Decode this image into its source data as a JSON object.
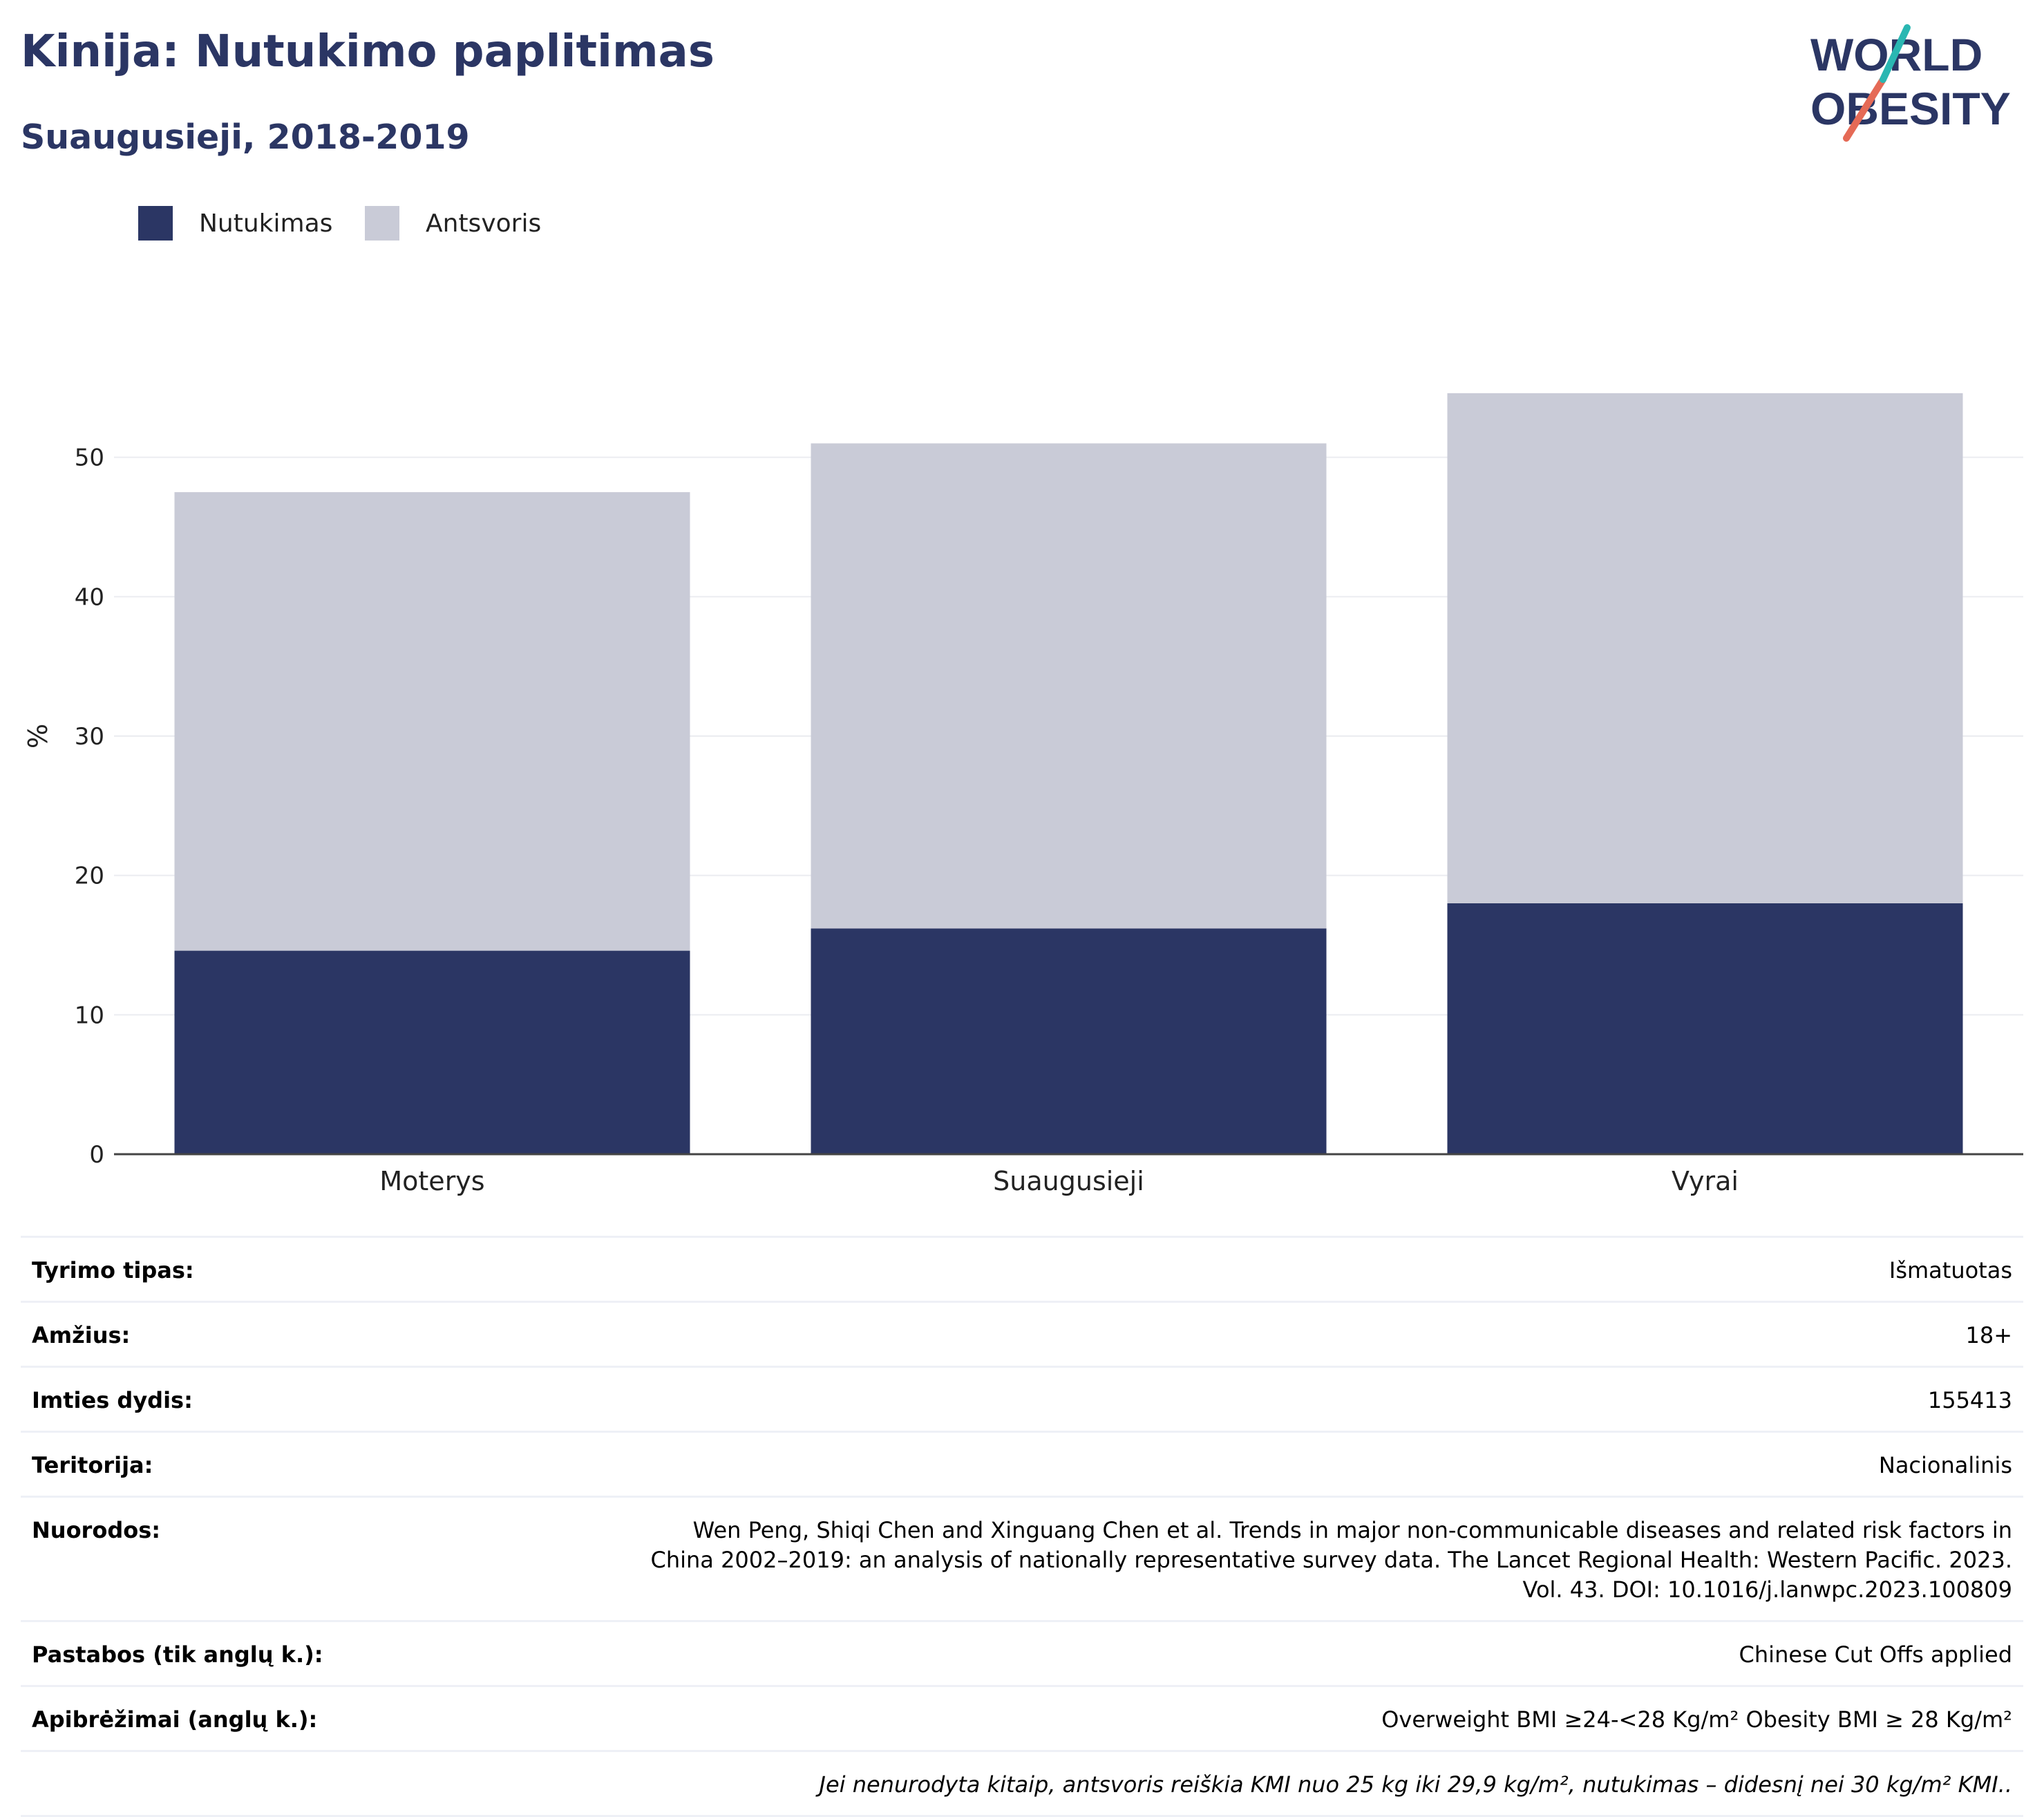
{
  "header": {
    "title": "Kinija: Nutukimo paplitimas",
    "subtitle": "Suaugusieji, 2018-2019"
  },
  "logo": {
    "line1": "WORLD",
    "line2": "OBESITY",
    "accent_colors": [
      "#2ab7b2",
      "#e56a56"
    ]
  },
  "colors": {
    "obesity": "#2b3664",
    "overweight": "#c9cbd7",
    "text_dark": "#2b3664"
  },
  "chart_data": {
    "type": "bar",
    "stacked": true,
    "categories": [
      "Moterys",
      "Suaugusieji",
      "Vyrai"
    ],
    "series": [
      {
        "name": "Nutukimas",
        "values": [
          14.6,
          16.2,
          18.0
        ],
        "color": "#2b3664"
      },
      {
        "name": "Antsvoris",
        "values": [
          32.9,
          34.8,
          36.6
        ],
        "color": "#c9cbd7"
      }
    ],
    "ylabel": "%",
    "xlabel": "",
    "ylim": [
      0,
      60
    ],
    "yticks": [
      0,
      10,
      20,
      30,
      40,
      50
    ],
    "grid": true,
    "legend_position": "top-left"
  },
  "info": {
    "rows": [
      {
        "label": "Tyrimo tipas:",
        "value": "Išmatuotas"
      },
      {
        "label": "Amžius:",
        "value": "18+"
      },
      {
        "label": "Imties dydis:",
        "value": "155413"
      },
      {
        "label": "Teritorija:",
        "value": "Nacionalinis"
      },
      {
        "label": "Nuorodos:",
        "value": "Wen Peng, Shiqi Chen and Xinguang Chen et al. Trends in major non-communicable diseases and related risk factors in China 2002–2019: an analysis of nationally representative survey data. The Lancet Regional Health: Western Pacific. 2023. Vol. 43. DOI: 10.1016/j.lanwpc.2023.100809"
      },
      {
        "label": "Pastabos (tik anglų k.):",
        "value": "Chinese Cut Offs applied"
      },
      {
        "label": "Apibrėžimai (anglų k.):",
        "value": "Overweight BMI ≥24-<28 Kg/m² Obesity BMI ≥ 28 Kg/m²"
      }
    ],
    "note": "Jei nenurodyta kitaip, antsvoris reiškia KMI nuo 25 kg iki 29,9 kg/m², nutukimas – didesnį nei 30 kg/m² KMI.."
  }
}
